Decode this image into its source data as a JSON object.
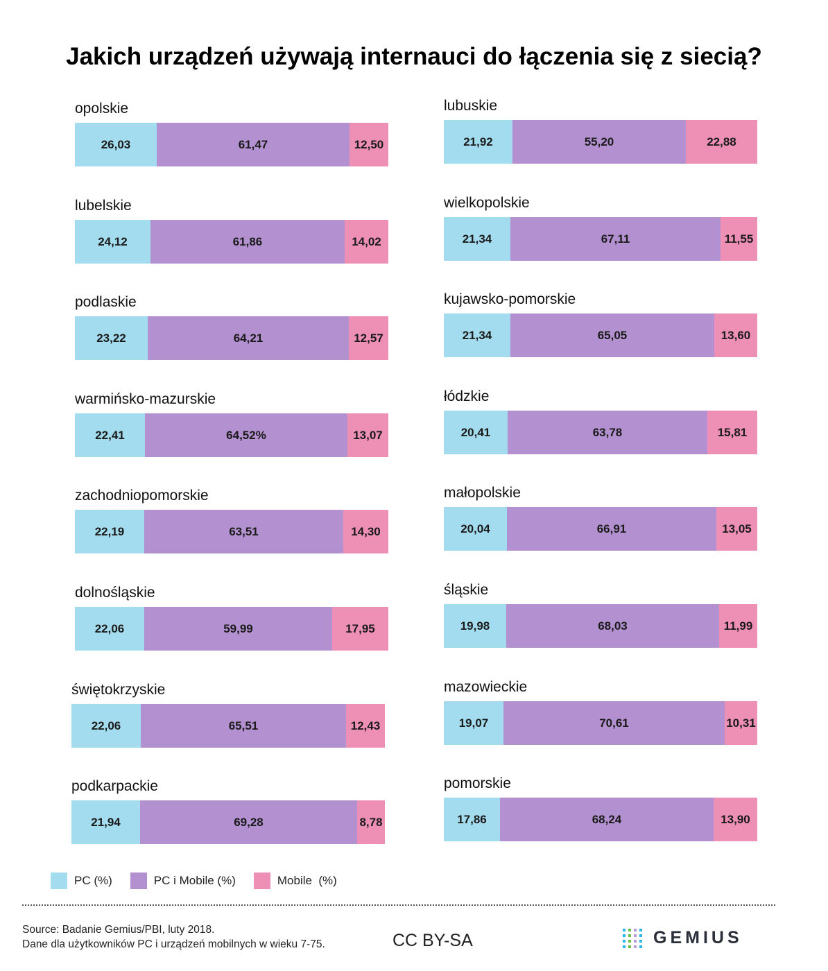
{
  "title": "Jakich urządzeń używają internauci do łączenia się z siecią?",
  "legend": [
    {
      "label": "PC (%)",
      "color": "#a3dcee"
    },
    {
      "label": "PC i Mobile (%)",
      "color": "#b390cf"
    },
    {
      "label": "Mobile  (%)",
      "color": "#ee8fb5"
    }
  ],
  "chart_data": {
    "type": "bar",
    "stacked": true,
    "orientation": "horizontal",
    "series": [
      {
        "name": "PC (%)",
        "color": "#a3dcee"
      },
      {
        "name": "PC i Mobile (%)",
        "color": "#b390cf"
      },
      {
        "name": "Mobile  (%)",
        "color": "#ee8fb5"
      }
    ],
    "regions": [
      {
        "name": "opolskie",
        "values": [
          26.03,
          61.47,
          12.5
        ],
        "labels": [
          "26,03",
          "61,47",
          "12,50"
        ]
      },
      {
        "name": "lubelskie",
        "values": [
          24.12,
          61.86,
          14.02
        ],
        "labels": [
          "24,12",
          "61,86",
          "14,02"
        ]
      },
      {
        "name": "podlaskie",
        "values": [
          23.22,
          64.21,
          12.57
        ],
        "labels": [
          "23,22",
          "64,21",
          "12,57"
        ]
      },
      {
        "name": "warmińsko-mazurskie",
        "values": [
          22.41,
          64.52,
          13.07
        ],
        "labels": [
          "22,41",
          "64,52%",
          "13,07"
        ]
      },
      {
        "name": "zachodniopomorskie",
        "values": [
          22.19,
          63.51,
          14.3
        ],
        "labels": [
          "22,19",
          "63,51",
          "14,30"
        ]
      },
      {
        "name": "dolnośląskie",
        "values": [
          22.06,
          59.99,
          17.95
        ],
        "labels": [
          "22,06",
          "59,99",
          "17,95"
        ]
      },
      {
        "name": "świętokrzyskie",
        "values": [
          22.06,
          65.51,
          12.43
        ],
        "labels": [
          "22,06",
          "65,51",
          "12,43"
        ]
      },
      {
        "name": "podkarpackie",
        "values": [
          21.94,
          69.28,
          8.78
        ],
        "labels": [
          "21,94",
          "69,28",
          "8,78"
        ]
      },
      {
        "name": "lubuskie",
        "values": [
          21.92,
          55.2,
          22.88
        ],
        "labels": [
          "21,92",
          "55,20",
          "22,88"
        ]
      },
      {
        "name": "wielkopolskie",
        "values": [
          21.34,
          67.11,
          11.55
        ],
        "labels": [
          "21,34",
          "67,11",
          "11,55"
        ]
      },
      {
        "name": "kujawsko-pomorskie",
        "values": [
          21.34,
          65.05,
          13.6
        ],
        "labels": [
          "21,34",
          "65,05",
          "13,60"
        ]
      },
      {
        "name": "łódzkie",
        "values": [
          20.41,
          63.78,
          15.81
        ],
        "labels": [
          "20,41",
          "63,78",
          "15,81"
        ]
      },
      {
        "name": "małopolskie",
        "values": [
          20.04,
          66.91,
          13.05
        ],
        "labels": [
          "20,04",
          "66,91",
          "13,05"
        ]
      },
      {
        "name": "śląskie",
        "values": [
          19.98,
          68.03,
          11.99
        ],
        "labels": [
          "19,98",
          "68,03",
          "11,99"
        ]
      },
      {
        "name": "mazowieckie",
        "values": [
          19.07,
          70.61,
          10.31
        ],
        "labels": [
          "19,07",
          "70,61",
          "10,31"
        ]
      },
      {
        "name": "pomorskie",
        "values": [
          17.86,
          68.24,
          13.9
        ],
        "labels": [
          "17,86",
          "68,24",
          "13,90"
        ]
      }
    ]
  },
  "source_lines": [
    "Source: Badanie Gemius/PBI, luty 2018.",
    "Dane dla użytkowników PC i urządzeń mobilnych w wieku 7-75."
  ],
  "license": "CC BY-SA",
  "brand": {
    "name": "GEMIUS",
    "icon": "gemius-dots-logo",
    "dot_colors": [
      "#29b6e8",
      "#6cc04a",
      "#b39ddb",
      "#29b6e8"
    ]
  }
}
